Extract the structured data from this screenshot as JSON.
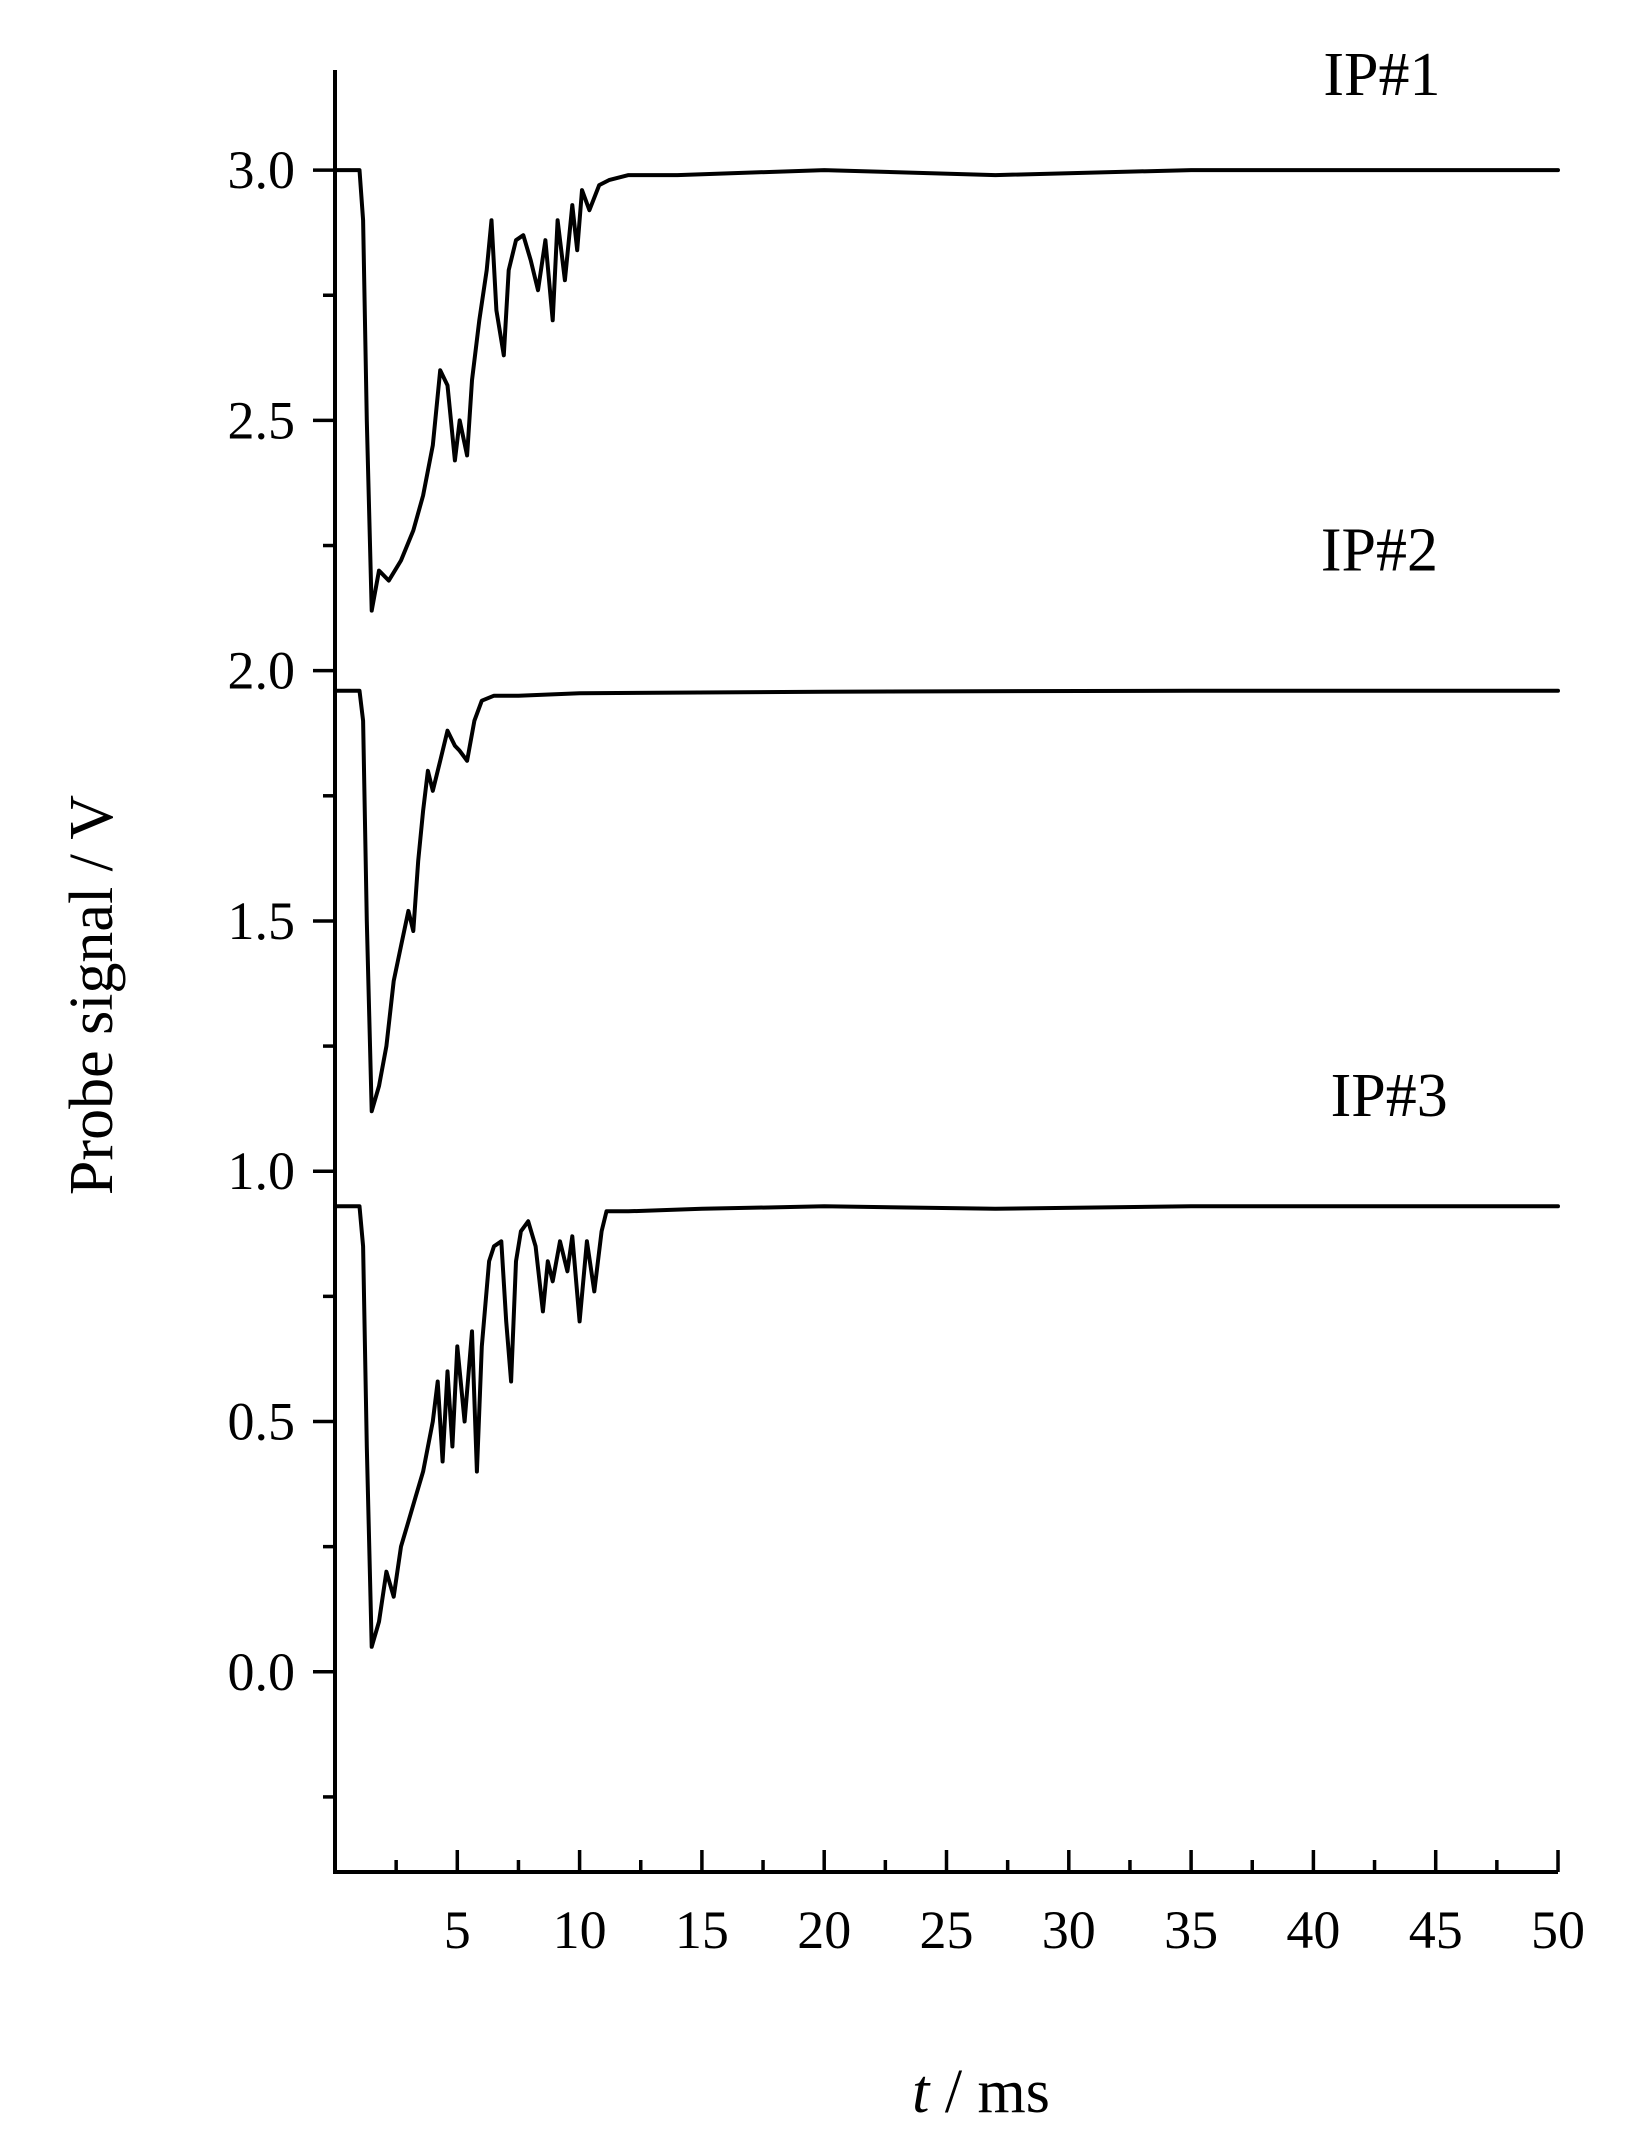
{
  "chart_data": {
    "type": "line",
    "xlabel": {
      "italic": "t",
      "rest": " / ms"
    },
    "ylabel": "Probe signal / V",
    "xlim": [
      0,
      50
    ],
    "ylim": [
      -0.4,
      3.2
    ],
    "x_ticks": [
      5,
      10,
      15,
      20,
      25,
      30,
      35,
      40,
      45,
      50
    ],
    "x_minor_step": 2.5,
    "y_ticks": [
      0.0,
      0.5,
      1.0,
      1.5,
      2.0,
      2.5,
      3.0
    ],
    "y_tick_labels": [
      "0.0",
      "0.5",
      "1.0",
      "1.5",
      "2.0",
      "2.5",
      "3.0"
    ],
    "y_minor_step": 0.25,
    "series": [
      {
        "name": "IP#1",
        "label_position": {
          "x": 42.8,
          "y": 3.15
        },
        "x": [
          0,
          1,
          1.15,
          1.3,
          1.5,
          1.8,
          2.2,
          2.7,
          3.2,
          3.6,
          4.0,
          4.3,
          4.6,
          4.9,
          5.1,
          5.4,
          5.6,
          5.9,
          6.2,
          6.4,
          6.6,
          6.9,
          7.1,
          7.4,
          7.7,
          8.0,
          8.3,
          8.6,
          8.9,
          9.1,
          9.4,
          9.7,
          9.9,
          10.1,
          10.4,
          10.8,
          11.2,
          12.0,
          14.0,
          20.0,
          27.0,
          35.0,
          50.0
        ],
        "y": [
          3.0,
          3.0,
          2.9,
          2.5,
          2.12,
          2.2,
          2.18,
          2.22,
          2.28,
          2.35,
          2.45,
          2.6,
          2.57,
          2.42,
          2.5,
          2.43,
          2.58,
          2.7,
          2.8,
          2.9,
          2.72,
          2.63,
          2.8,
          2.86,
          2.87,
          2.82,
          2.76,
          2.86,
          2.7,
          2.9,
          2.78,
          2.93,
          2.84,
          2.96,
          2.92,
          2.97,
          2.98,
          2.99,
          2.99,
          3.0,
          2.99,
          3.0,
          3.0
        ]
      },
      {
        "name": "IP#2",
        "label_position": {
          "x": 42.7,
          "y": 2.2
        },
        "x": [
          0,
          1,
          1.15,
          1.3,
          1.5,
          1.8,
          2.1,
          2.4,
          2.7,
          3.0,
          3.2,
          3.4,
          3.6,
          3.8,
          4.0,
          4.3,
          4.6,
          4.9,
          5.1,
          5.4,
          5.7,
          6.0,
          6.5,
          7.5,
          10.0,
          20.0,
          35.0,
          50.0
        ],
        "y": [
          1.96,
          1.96,
          1.9,
          1.5,
          1.12,
          1.17,
          1.25,
          1.38,
          1.45,
          1.52,
          1.48,
          1.62,
          1.72,
          1.8,
          1.76,
          1.82,
          1.88,
          1.85,
          1.84,
          1.82,
          1.9,
          1.94,
          1.95,
          1.95,
          1.955,
          1.958,
          1.96,
          1.96
        ]
      },
      {
        "name": "IP#3",
        "label_position": {
          "x": 43.1,
          "y": 1.11
        },
        "x": [
          0,
          1,
          1.15,
          1.3,
          1.5,
          1.8,
          2.1,
          2.4,
          2.7,
          3.0,
          3.3,
          3.6,
          4.0,
          4.2,
          4.4,
          4.6,
          4.8,
          5.0,
          5.3,
          5.6,
          5.8,
          6.0,
          6.3,
          6.5,
          6.8,
          7.0,
          7.2,
          7.4,
          7.6,
          7.9,
          8.2,
          8.5,
          8.7,
          8.9,
          9.2,
          9.5,
          9.7,
          10.0,
          10.3,
          10.6,
          10.9,
          11.1,
          11.4,
          12.0,
          15.0,
          20.0,
          27.0,
          35.0,
          50.0
        ],
        "y": [
          0.93,
          0.93,
          0.85,
          0.45,
          0.05,
          0.1,
          0.2,
          0.15,
          0.25,
          0.3,
          0.35,
          0.4,
          0.5,
          0.58,
          0.42,
          0.6,
          0.45,
          0.65,
          0.5,
          0.68,
          0.4,
          0.65,
          0.82,
          0.85,
          0.86,
          0.7,
          0.58,
          0.82,
          0.88,
          0.9,
          0.85,
          0.72,
          0.82,
          0.78,
          0.86,
          0.8,
          0.87,
          0.7,
          0.86,
          0.76,
          0.88,
          0.92,
          0.92,
          0.92,
          0.925,
          0.93,
          0.925,
          0.93,
          0.93
        ]
      }
    ],
    "grid": false,
    "legend": "none"
  }
}
